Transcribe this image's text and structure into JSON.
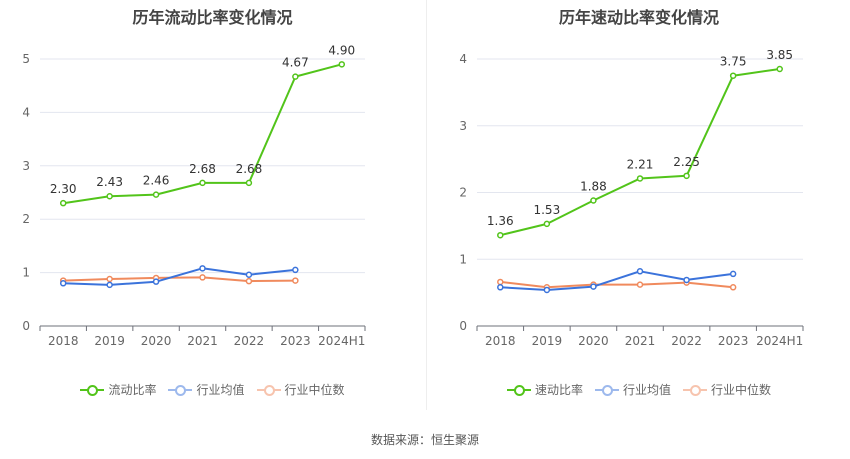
{
  "chart_data": [
    {
      "type": "line",
      "title": "历年流动比率变化情况",
      "categories": [
        "2018",
        "2019",
        "2020",
        "2021",
        "2022",
        "2023",
        "2024H1"
      ],
      "ylim": [
        0,
        5
      ],
      "yticks": [
        0,
        1,
        2,
        3,
        4,
        5
      ],
      "grid": true,
      "legend_position": "bottom",
      "series": [
        {
          "name": "流动比率",
          "color": "#52c41a",
          "values": [
            2.3,
            2.43,
            2.46,
            2.68,
            2.68,
            4.67,
            4.9
          ],
          "labels": [
            "2.30",
            "2.43",
            "2.46",
            "2.68",
            "2.68",
            "4.67",
            "4.90"
          ],
          "legend_faded": false
        },
        {
          "name": "行业均值",
          "color": "#3b73db",
          "values": [
            0.8,
            0.77,
            0.83,
            1.08,
            0.96,
            1.05,
            null
          ],
          "legend_faded": true
        },
        {
          "name": "行业中位数",
          "color": "#f08a5d",
          "values": [
            0.85,
            0.88,
            0.9,
            0.91,
            0.84,
            0.85,
            null
          ],
          "legend_faded": true
        }
      ]
    },
    {
      "type": "line",
      "title": "历年速动比率变化情况",
      "categories": [
        "2018",
        "2019",
        "2020",
        "2021",
        "2022",
        "2023",
        "2024H1"
      ],
      "ylim": [
        0,
        4
      ],
      "yticks": [
        0,
        1,
        2,
        3,
        4
      ],
      "grid": true,
      "legend_position": "bottom",
      "series": [
        {
          "name": "速动比率",
          "color": "#52c41a",
          "values": [
            1.36,
            1.53,
            1.88,
            2.21,
            2.25,
            3.75,
            3.85
          ],
          "labels": [
            "1.36",
            "1.53",
            "1.88",
            "2.21",
            "2.25",
            "3.75",
            "3.85"
          ],
          "legend_faded": false
        },
        {
          "name": "行业均值",
          "color": "#3b73db",
          "values": [
            0.58,
            0.54,
            0.59,
            0.82,
            0.69,
            0.78,
            null
          ],
          "legend_faded": true
        },
        {
          "name": "行业中位数",
          "color": "#f08a5d",
          "values": [
            0.66,
            0.58,
            0.62,
            0.62,
            0.65,
            0.58,
            null
          ],
          "legend_faded": true
        }
      ]
    }
  ],
  "footer": {
    "source": "数据来源：恒生聚源"
  }
}
